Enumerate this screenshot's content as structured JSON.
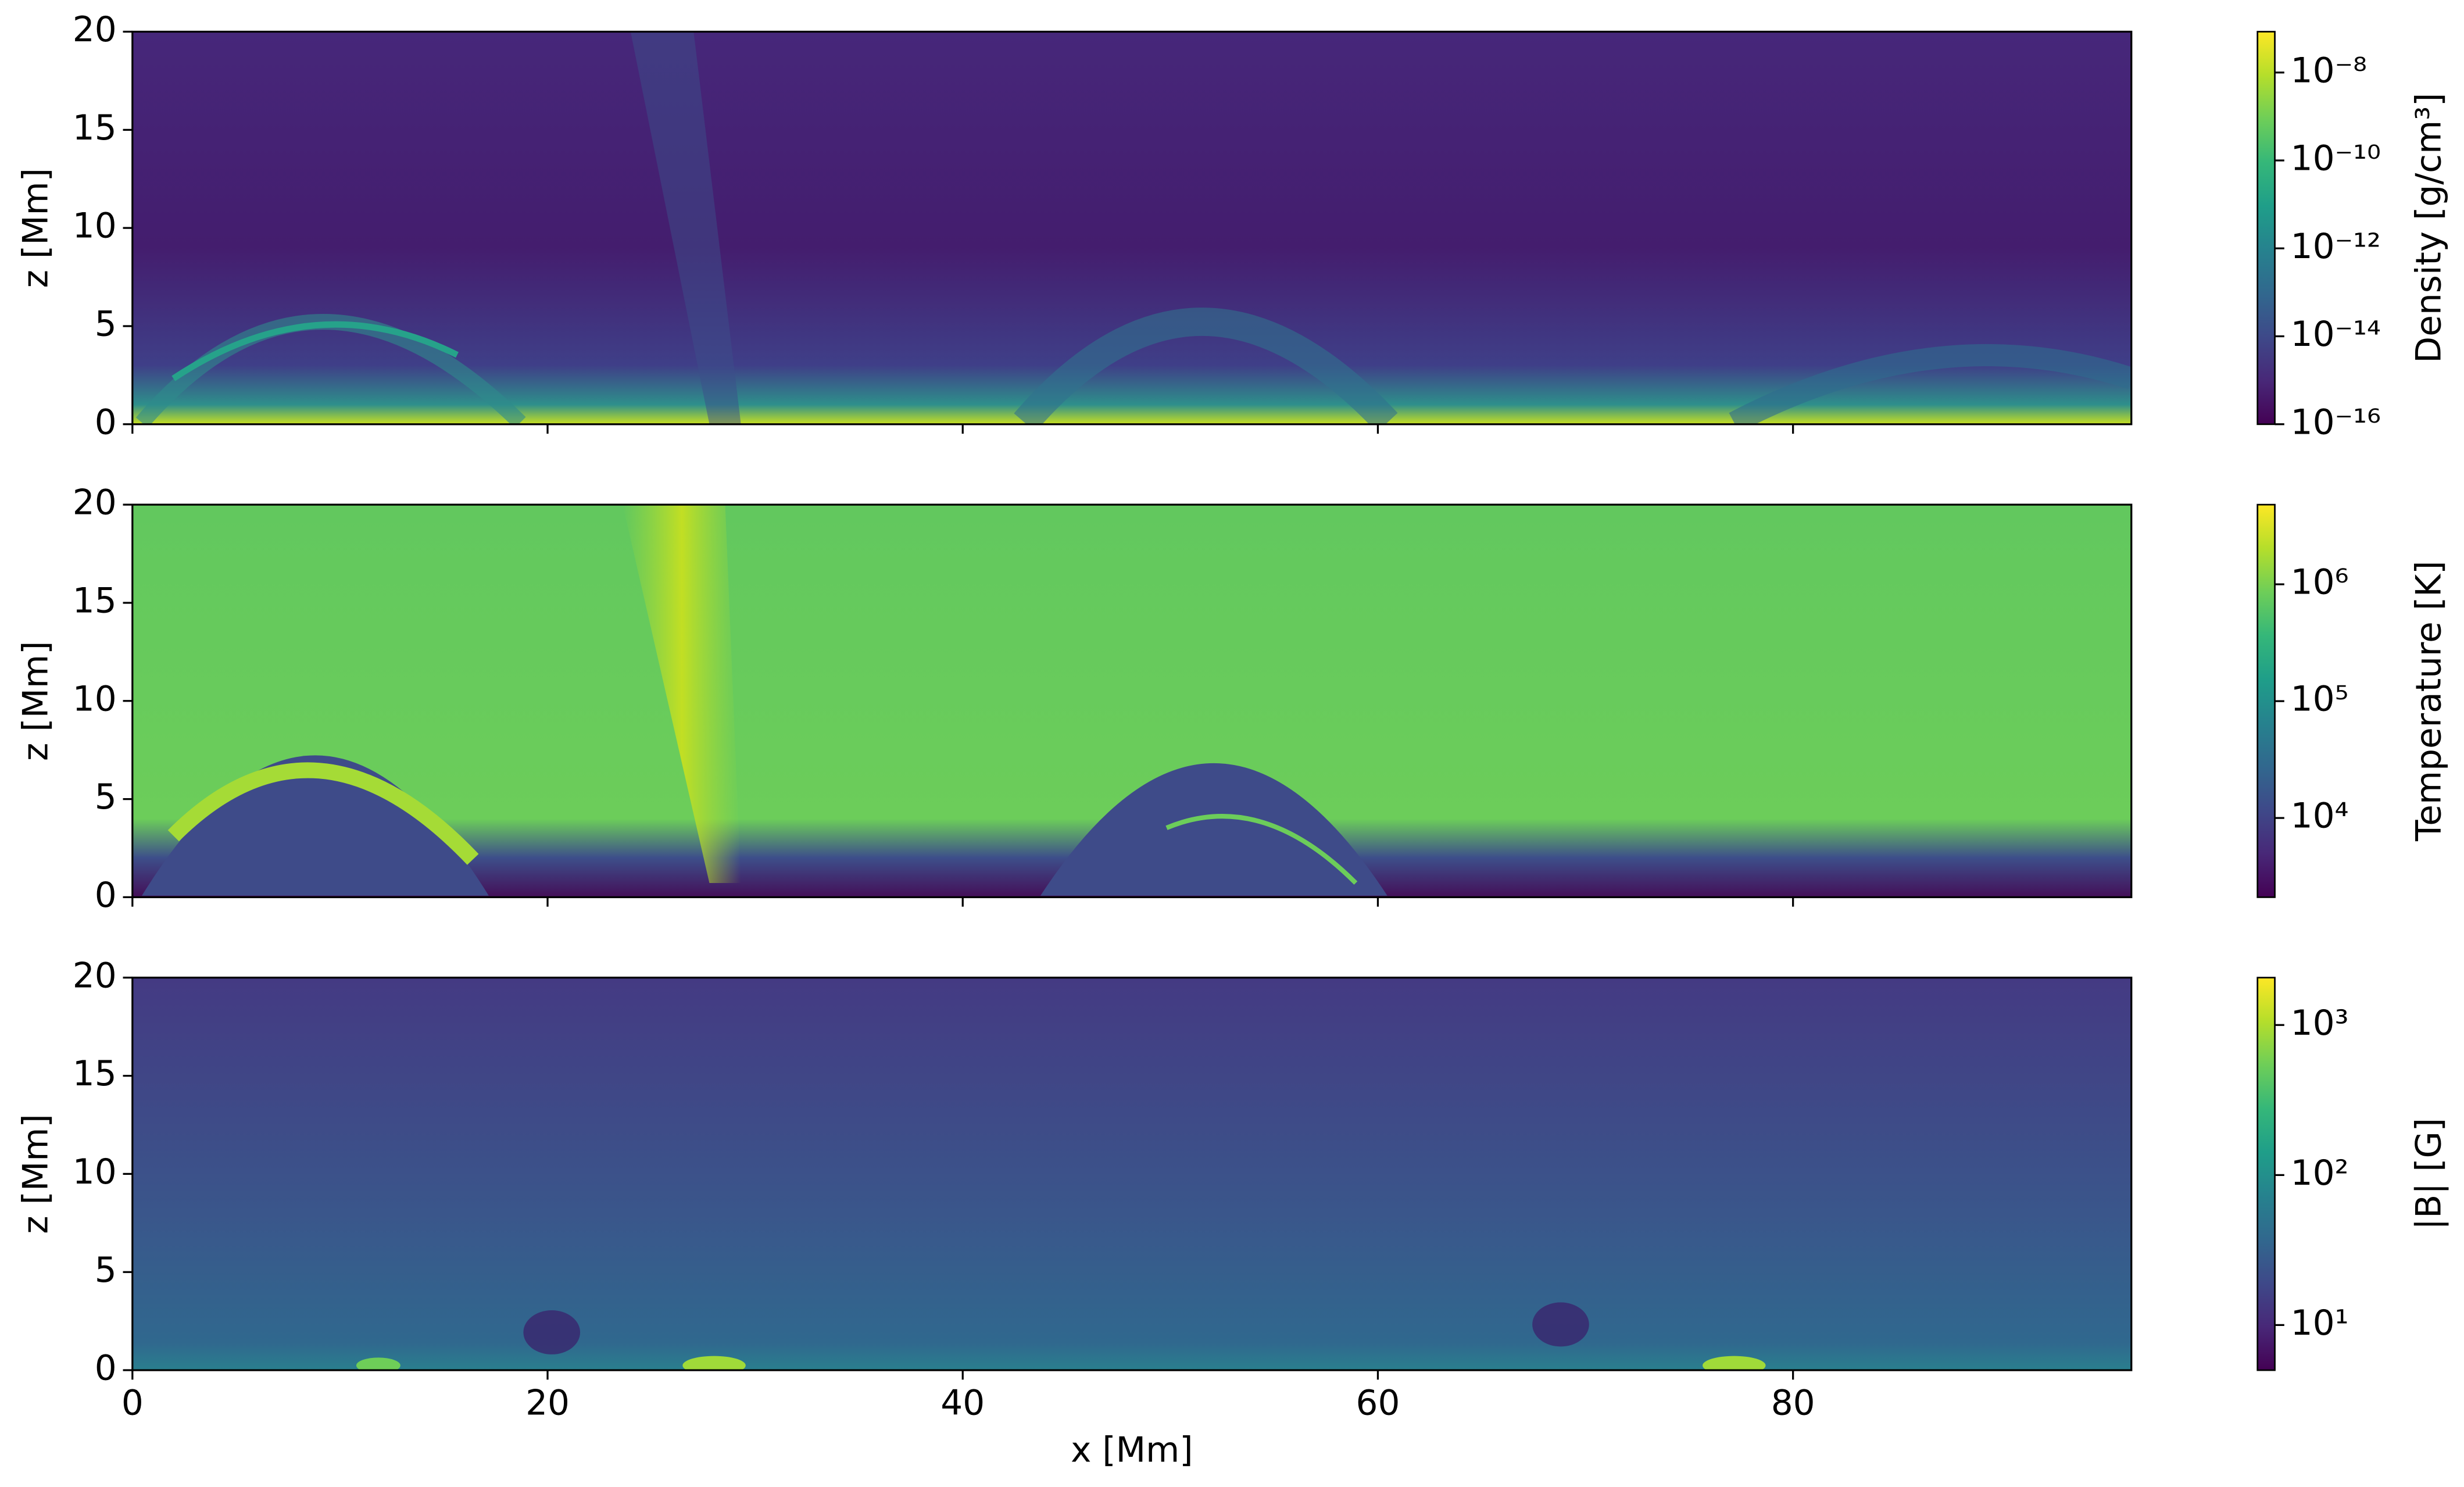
{
  "chart_data": [
    {
      "type": "heatmap",
      "ylabel": "z [Mm]",
      "xlim": [
        0,
        96.3
      ],
      "ylim": [
        0,
        20
      ],
      "xticks": [
        0,
        20,
        40,
        60,
        80
      ],
      "yticks": [
        0,
        5,
        10,
        15,
        20
      ],
      "show_xticklabels": false,
      "colormap": "viridis",
      "colorbar": {
        "label": "Density [g/cm³]",
        "log": true,
        "clim": [
          1e-16,
          8.5e-08
        ],
        "ticks": [
          {
            "value": 1e-16,
            "label": "10⁻¹⁶"
          },
          {
            "value": 1e-14,
            "label": "10⁻¹⁴"
          },
          {
            "value": 1e-12,
            "label": "10⁻¹²"
          },
          {
            "value": 1e-10,
            "label": "10⁻¹⁰"
          },
          {
            "value": 1e-08,
            "label": "10⁻⁸"
          }
        ]
      }
    },
    {
      "type": "heatmap",
      "ylabel": "z [Mm]",
      "xlim": [
        0,
        96.3
      ],
      "ylim": [
        0,
        20
      ],
      "xticks": [
        0,
        20,
        40,
        60,
        80
      ],
      "yticks": [
        0,
        5,
        10,
        15,
        20
      ],
      "show_xticklabels": false,
      "colormap": "viridis",
      "colorbar": {
        "label": "Temperature [K]",
        "log": true,
        "clim": [
          2100,
          4800000
        ],
        "ticks": [
          {
            "value": 10000,
            "label": "10⁴"
          },
          {
            "value": 100000,
            "label": "10⁵"
          },
          {
            "value": 1000000,
            "label": "10⁶"
          }
        ]
      }
    },
    {
      "type": "heatmap",
      "xlabel": "x [Mm]",
      "ylabel": "z [Mm]",
      "xlim": [
        0,
        96.3
      ],
      "ylim": [
        0,
        20
      ],
      "xticks": [
        0,
        20,
        40,
        60,
        80
      ],
      "yticks": [
        0,
        5,
        10,
        15,
        20
      ],
      "show_xticklabels": true,
      "colormap": "viridis",
      "colorbar": {
        "label": "|B| [G]",
        "log": true,
        "clim": [
          5,
          2070
        ],
        "ticks": [
          {
            "value": 10,
            "label": "10¹"
          },
          {
            "value": 100,
            "label": "10²"
          },
          {
            "value": 1000,
            "label": "10³"
          }
        ]
      }
    }
  ]
}
